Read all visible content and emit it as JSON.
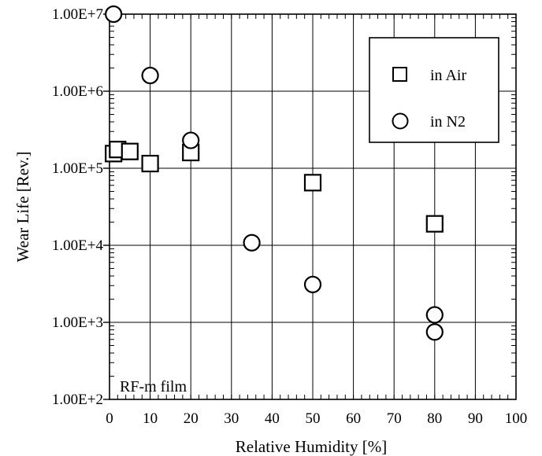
{
  "chart_data": {
    "type": "scatter",
    "xlabel": "Relative Humidity [%]",
    "ylabel": "Wear Life [Rev.]",
    "xlim": [
      0,
      100
    ],
    "ylim": [
      100,
      10000000
    ],
    "y_scale": "log",
    "grid": true,
    "legend_position": "top-right",
    "x_ticks": [
      "0",
      "10",
      "20",
      "30",
      "40",
      "50",
      "60",
      "70",
      "80",
      "90",
      "100"
    ],
    "y_ticks": [
      {
        "value": 100,
        "label": "1.00E+2"
      },
      {
        "value": 1000,
        "label": "1.00E+3"
      },
      {
        "value": 10000,
        "label": "1.00E+4"
      },
      {
        "value": 100000,
        "label": "1.00E+5"
      },
      {
        "value": 1000000,
        "label": "1.00E+6"
      },
      {
        "value": 10000000,
        "label": "1.00E+7"
      }
    ],
    "annotation": "RF-m film",
    "series": [
      {
        "name": "in Air",
        "marker": "square",
        "points": [
          {
            "x": 1,
            "y": 155000
          },
          {
            "x": 2,
            "y": 175000
          },
          {
            "x": 5,
            "y": 165000
          },
          {
            "x": 10,
            "y": 115000
          },
          {
            "x": 20,
            "y": 160000
          },
          {
            "x": 50,
            "y": 65000
          },
          {
            "x": 80,
            "y": 19000
          }
        ]
      },
      {
        "name": "in N2",
        "marker": "circle",
        "points": [
          {
            "x": 1,
            "y": 10000000
          },
          {
            "x": 10,
            "y": 1600000
          },
          {
            "x": 20,
            "y": 230000
          },
          {
            "x": 35,
            "y": 10800
          },
          {
            "x": 50,
            "y": 3100
          },
          {
            "x": 80,
            "y": 1250
          },
          {
            "x": 80,
            "y": 750
          }
        ]
      }
    ]
  },
  "colors": {
    "stroke": "#000000",
    "background": "#ffffff"
  }
}
